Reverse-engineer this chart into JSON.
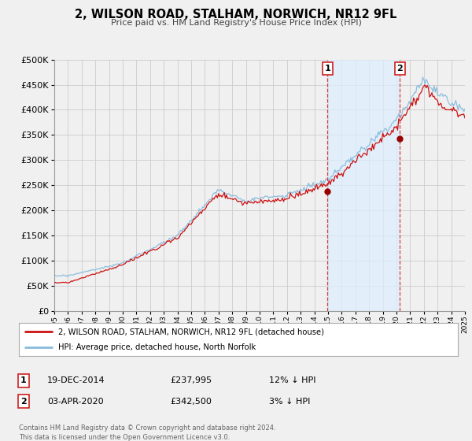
{
  "title": "2, WILSON ROAD, STALHAM, NORWICH, NR12 9FL",
  "subtitle": "Price paid vs. HM Land Registry's House Price Index (HPI)",
  "legend_line1": "2, WILSON ROAD, STALHAM, NORWICH, NR12 9FL (detached house)",
  "legend_line2": "HPI: Average price, detached house, North Norfolk",
  "annotation1_date": "19-DEC-2014",
  "annotation1_price": "£237,995",
  "annotation1_hpi": "12% ↓ HPI",
  "annotation1_year": 2014.96,
  "annotation1_value": 237995,
  "annotation2_date": "03-APR-2020",
  "annotation2_price": "£342,500",
  "annotation2_hpi": "3% ↓ HPI",
  "annotation2_year": 2020.25,
  "annotation2_value": 342500,
  "copyright": "Contains HM Land Registry data © Crown copyright and database right 2024.\nThis data is licensed under the Open Government Licence v3.0.",
  "fig_bg": "#f0f0f0",
  "plot_bg": "#f0f0f0",
  "shade_color": "#ddeeff",
  "line_red": "#cc1111",
  "line_blue": "#88bbdd",
  "marker_color": "#990000",
  "vline_color": "#cc2222",
  "grid_color": "#cccccc",
  "ylim": [
    0,
    500000
  ],
  "xlim_start": 1995,
  "xlim_end": 2025
}
